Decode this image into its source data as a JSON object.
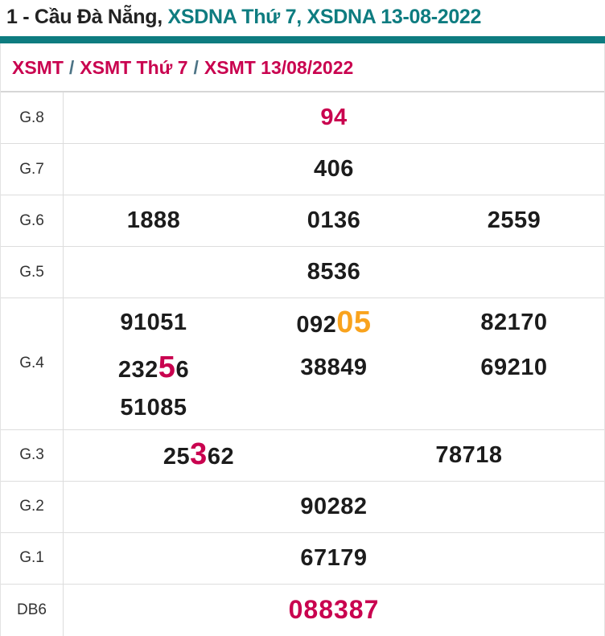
{
  "header": {
    "title_prefix": "1 - Cầu Đà Nẵng, ",
    "title_highlight": "XSDNA Thứ 7, XSDNA 13-08-2022"
  },
  "breadcrumb": {
    "separator": "/",
    "items": [
      {
        "label": "XSMT"
      },
      {
        "label": "XSMT Thứ 7"
      },
      {
        "label": "XSMT 13/08/2022"
      }
    ]
  },
  "colors": {
    "teal": "#0e7c80",
    "crimson": "#c9024f",
    "orange": "#f9a31d",
    "text_dark": "#1c1c1c"
  },
  "table": {
    "rows": [
      {
        "label": "G.8",
        "cols": 1,
        "cells": [
          {
            "segments": [
              {
                "text": "94",
                "style": "red"
              }
            ],
            "variant": "v-red"
          }
        ]
      },
      {
        "label": "G.7",
        "cols": 1,
        "cells": [
          {
            "segments": [
              {
                "text": "406"
              }
            ]
          }
        ]
      },
      {
        "label": "G.6",
        "cols": 3,
        "cells": [
          {
            "segments": [
              {
                "text": "1888"
              }
            ]
          },
          {
            "segments": [
              {
                "text": "0136"
              }
            ]
          },
          {
            "segments": [
              {
                "text": "2559"
              }
            ]
          }
        ]
      },
      {
        "label": "G.5",
        "cols": 1,
        "cells": [
          {
            "segments": [
              {
                "text": "8536"
              }
            ]
          }
        ]
      },
      {
        "label": "G.4",
        "cols": 3,
        "cells": [
          {
            "segments": [
              {
                "text": "91051"
              }
            ]
          },
          {
            "segments": [
              {
                "text": "092"
              },
              {
                "text": "05",
                "style": "orangebig"
              }
            ]
          },
          {
            "segments": [
              {
                "text": "82170"
              }
            ]
          },
          {
            "segments": [
              {
                "text": "232"
              },
              {
                "text": "5",
                "style": "redbig"
              },
              {
                "text": "6"
              }
            ]
          },
          {
            "segments": [
              {
                "text": "38849"
              }
            ]
          },
          {
            "segments": [
              {
                "text": "69210"
              }
            ]
          },
          {
            "segments": [
              {
                "text": "51085"
              }
            ]
          }
        ]
      },
      {
        "label": "G.3",
        "cols": 2,
        "cells": [
          {
            "segments": [
              {
                "text": "25"
              },
              {
                "text": "3",
                "style": "redbig"
              },
              {
                "text": "62"
              }
            ]
          },
          {
            "segments": [
              {
                "text": "78718"
              }
            ]
          }
        ]
      },
      {
        "label": "G.2",
        "cols": 1,
        "cells": [
          {
            "segments": [
              {
                "text": "90282"
              }
            ]
          }
        ]
      },
      {
        "label": "G.1",
        "cols": 1,
        "cells": [
          {
            "segments": [
              {
                "text": "67179"
              }
            ]
          }
        ]
      },
      {
        "label": "DB6",
        "cols": 1,
        "cells": [
          {
            "segments": [
              {
                "text": "088387",
                "style": "red"
              }
            ],
            "variant": "v-special"
          }
        ]
      }
    ]
  }
}
